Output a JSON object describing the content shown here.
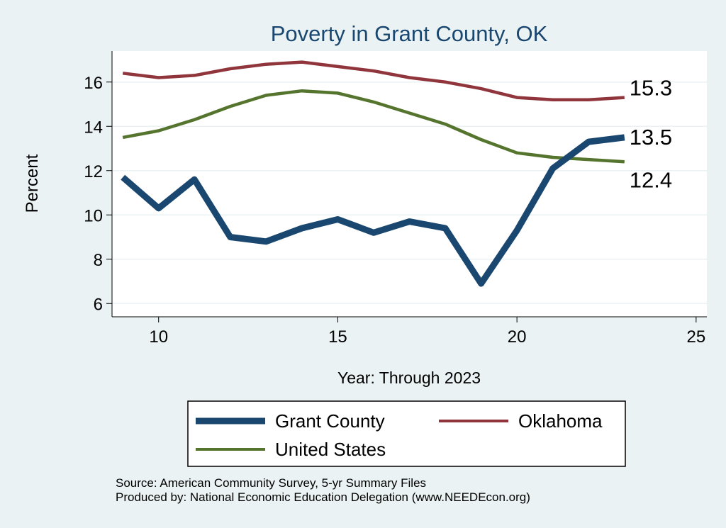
{
  "chart_data": {
    "type": "line",
    "title": "Poverty in Grant County, OK",
    "xlabel": "Year: Through 2023",
    "ylabel": "Percent",
    "xlim": [
      8.7,
      25.3
    ],
    "ylim": [
      5.4,
      17.4
    ],
    "xticks": [
      10,
      15,
      20,
      25
    ],
    "yticks": [
      6,
      8,
      10,
      12,
      14,
      16
    ],
    "x": [
      9,
      10,
      11,
      12,
      13,
      14,
      15,
      16,
      17,
      18,
      19,
      20,
      21,
      22,
      23
    ],
    "series": [
      {
        "name": "Grant County",
        "values": [
          11.7,
          10.3,
          11.6,
          9.0,
          8.8,
          9.4,
          9.8,
          9.2,
          9.7,
          9.4,
          6.9,
          9.3,
          12.1,
          13.3,
          13.5
        ],
        "color": "#1a476f",
        "end_label": "13.5"
      },
      {
        "name": "Oklahoma",
        "values": [
          16.4,
          16.2,
          16.3,
          16.6,
          16.8,
          16.9,
          16.7,
          16.5,
          16.2,
          16.0,
          15.7,
          15.3,
          15.2,
          15.2,
          15.3
        ],
        "color": "#90353b",
        "end_label": "15.3"
      },
      {
        "name": "United States",
        "values": [
          13.5,
          13.8,
          14.3,
          14.9,
          15.4,
          15.6,
          15.5,
          15.1,
          14.6,
          14.1,
          13.4,
          12.8,
          12.6,
          12.5,
          12.4
        ],
        "color": "#55752f",
        "end_label": "12.4"
      }
    ],
    "legend": [
      "Grant County",
      "Oklahoma",
      "United States"
    ]
  },
  "footer": {
    "source": "Source: American Community Survey, 5-yr Summary Files",
    "produced": "Produced by: National Economic Education Delegation (www.NEEDEcon.org)"
  }
}
